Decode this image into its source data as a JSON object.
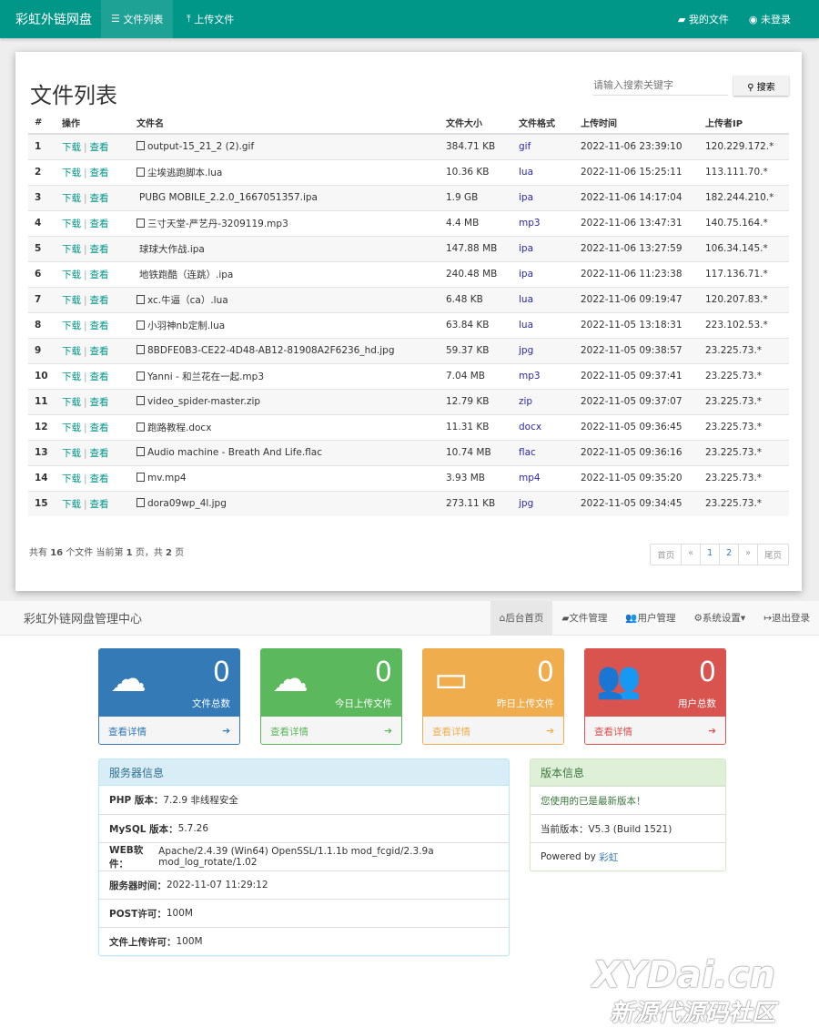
{
  "topnav": {
    "brand": "彩虹外链网盘",
    "items": [
      {
        "icon": "list-icon",
        "label": "文件列表",
        "active": true
      },
      {
        "icon": "upload-icon",
        "label": "上传文件"
      }
    ],
    "right": [
      {
        "icon": "folder-icon",
        "label": "我的文件"
      },
      {
        "icon": "user-circle-icon",
        "label": "未登录"
      }
    ],
    "color": "#009688"
  },
  "filelist": {
    "title": "文件列表",
    "search_placeholder": "请输入搜索关键字",
    "search_button": "搜索",
    "columns": [
      "#",
      "操作",
      "文件名",
      "文件大小",
      "文件格式",
      "上传时间",
      "上传者IP"
    ],
    "download": "下载",
    "view": "查看",
    "rows": [
      [
        "1",
        "image",
        "output-15_21_2 (2).gif",
        "384.71 KB",
        "gif",
        "2022-11-06 23:39:10",
        "120.229.172.*"
      ],
      [
        "2",
        "code",
        "尘埃逃跑脚本.lua",
        "10.36 KB",
        "lua",
        "2022-11-06 15:25:11",
        "113.111.70.*"
      ],
      [
        "3",
        "apple",
        "PUBG MOBILE_2.2.0_1667051357.ipa",
        "1.9 GB",
        "ipa",
        "2022-11-06 14:17:04",
        "182.244.210.*"
      ],
      [
        "4",
        "audio",
        "三寸天堂-严艺丹-3209119.mp3",
        "4.4 MB",
        "mp3",
        "2022-11-06 13:47:31",
        "140.75.164.*"
      ],
      [
        "5",
        "apple",
        "球球大作战.ipa",
        "147.88 MB",
        "ipa",
        "2022-11-06 13:27:59",
        "106.34.145.*"
      ],
      [
        "6",
        "apple",
        "地铁跑酷（连跳）.ipa",
        "240.48 MB",
        "ipa",
        "2022-11-06 11:23:38",
        "117.136.71.*"
      ],
      [
        "7",
        "code",
        "xc.牛逼（ca）.lua",
        "6.48 KB",
        "lua",
        "2022-11-06 09:19:47",
        "120.207.83.*"
      ],
      [
        "8",
        "code",
        "小羽神nb定制.lua",
        "63.84 KB",
        "lua",
        "2022-11-05 13:18:31",
        "223.102.53.*"
      ],
      [
        "9",
        "image",
        "8BDFE0B3-CE22-4D48-AB12-81908A2F6236_hd.jpg",
        "59.37 KB",
        "jpg",
        "2022-11-05 09:38:57",
        "23.225.73.*"
      ],
      [
        "10",
        "audio",
        "Yanni - 和兰花在一起.mp3",
        "7.04 MB",
        "mp3",
        "2022-11-05 09:37:41",
        "23.225.73.*"
      ],
      [
        "11",
        "archive",
        "video_spider-master.zip",
        "12.79 KB",
        "zip",
        "2022-11-05 09:37:07",
        "23.225.73.*"
      ],
      [
        "12",
        "word",
        "跑路教程.docx",
        "11.31 KB",
        "docx",
        "2022-11-05 09:36:45",
        "23.225.73.*"
      ],
      [
        "13",
        "audio",
        "Audio machine - Breath And Life.flac",
        "10.74 MB",
        "flac",
        "2022-11-05 09:36:16",
        "23.225.73.*"
      ],
      [
        "14",
        "video",
        "mv.mp4",
        "3.93 MB",
        "mp4",
        "2022-11-05 09:35:20",
        "23.225.73.*"
      ],
      [
        "15",
        "image",
        "dora09wp_4l.jpg",
        "273.11 KB",
        "jpg",
        "2022-11-05 09:34:45",
        "23.225.73.*"
      ]
    ],
    "summary": {
      "p1": "共有",
      "total": "16",
      "p2": "个文件  当前第",
      "page": "1",
      "p3": "页，共",
      "pages": "2",
      "p4": "页"
    },
    "pager": [
      "首页",
      "«",
      "1",
      "2",
      "»",
      "尾页"
    ]
  },
  "admin": {
    "brand": "彩虹外链网盘管理中心",
    "items": [
      {
        "icon": "home-icon",
        "label": "后台首页",
        "active": true
      },
      {
        "icon": "folder-icon",
        "label": "文件管理"
      },
      {
        "icon": "users-icon",
        "label": "用户管理"
      },
      {
        "icon": "gear-icon",
        "label": "系统设置▾"
      },
      {
        "icon": "logout-icon",
        "label": "退出登录"
      }
    ]
  },
  "stats": [
    {
      "icon": "cloud-icon",
      "value": "0",
      "label": "文件总数",
      "link": "查看详情",
      "color": "#337ab7"
    },
    {
      "icon": "cloud-upload-icon",
      "value": "0",
      "label": "今日上传文件",
      "link": "查看详情",
      "color": "#5cb85c"
    },
    {
      "icon": "inbox-icon",
      "value": "0",
      "label": "昨日上传文件",
      "link": "查看详情",
      "color": "#f0ad4e"
    },
    {
      "icon": "users-icon",
      "value": "0",
      "label": "用户总数",
      "link": "查看详情",
      "color": "#d9534f"
    }
  ],
  "server": {
    "title": "服务器信息",
    "rows": [
      [
        "PHP 版本：",
        "7.2.9 非线程安全"
      ],
      [
        "MySQL 版本：",
        "5.7.26"
      ],
      [
        "WEB软件：",
        "Apache/2.4.39 (Win64) OpenSSL/1.1.1b mod_fcgid/2.3.9a mod_log_rotate/1.02"
      ],
      [
        "服务器时间：",
        "2022-11-07 11:29:12"
      ],
      [
        "POST许可：",
        "100M"
      ],
      [
        "文件上传许可：",
        "100M"
      ]
    ]
  },
  "version": {
    "title": "版本信息",
    "latest": "您使用的已是最新版本！",
    "current": "当前版本：V5.3 (Build 1521)",
    "powered": "Powered by ",
    "author": "彩虹"
  },
  "watermark": {
    "line1": "XYDai.cn",
    "line2": "新源代源码社区"
  }
}
